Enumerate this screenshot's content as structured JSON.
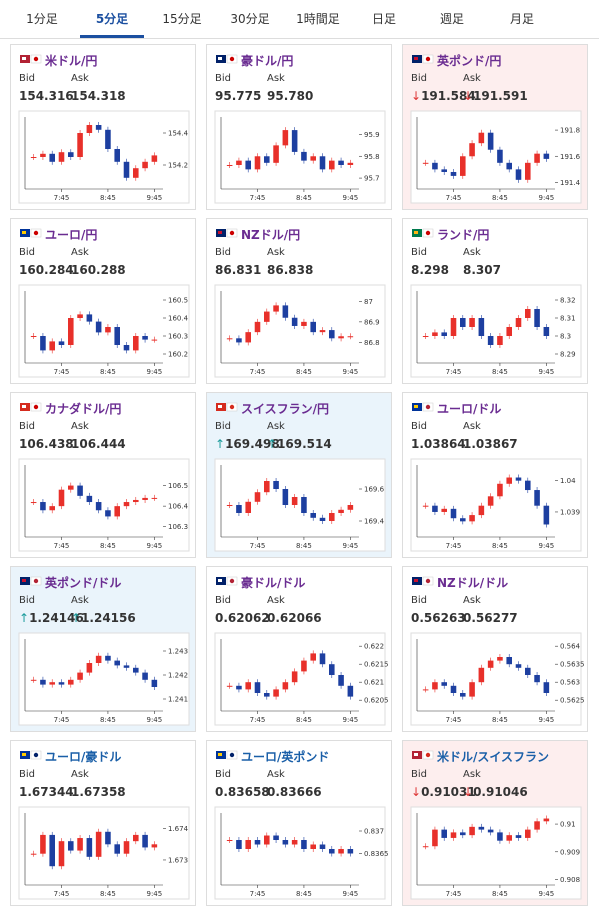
{
  "tabs": [
    "1分足",
    "5分足",
    "15分足",
    "30分足",
    "1時間足",
    "日足",
    "週足",
    "月足"
  ],
  "active_tab": 1,
  "labels": {
    "bid": "Bid",
    "ask": "Ask"
  },
  "cards": [
    {
      "name": "米ドル/円",
      "bid": "154.316",
      "ask": "154.318",
      "chart": {
        "ylim": [
          154.05,
          154.5
        ],
        "yticks": [
          154.4,
          154.2
        ],
        "closes": [
          154.25,
          154.27,
          154.22,
          154.28,
          154.25,
          154.4,
          154.45,
          154.42,
          154.3,
          154.22,
          154.12,
          154.18,
          154.22,
          154.26
        ],
        "xticks": [
          {
            "value": 3,
            "label": "7:45"
          },
          {
            "value": 8,
            "label": "8:45"
          },
          {
            "value": 13,
            "label": "9:45"
          }
        ]
      }
    },
    {
      "name": "豪ドル/円",
      "bid": "95.775",
      "ask": "95.780",
      "chart": {
        "ylim": [
          95.65,
          95.98
        ],
        "yticks": [
          95.9,
          95.8,
          95.7
        ],
        "closes": [
          95.76,
          95.78,
          95.74,
          95.8,
          95.77,
          95.85,
          95.92,
          95.82,
          95.78,
          95.8,
          95.74,
          95.78,
          95.76,
          95.77
        ],
        "xticks": [
          {
            "value": 3,
            "label": "7:45"
          },
          {
            "value": 8,
            "label": "8:45"
          },
          {
            "value": 13,
            "label": "9:45"
          }
        ]
      }
    },
    {
      "name": "英ポンド/円",
      "arrow": "↓",
      "direction": "down",
      "highlight": "#fdeeee",
      "bid": "191.584",
      "ask": "191.591",
      "chart": {
        "ylim": [
          191.35,
          191.9
        ],
        "yticks": [
          191.8,
          191.6,
          191.4
        ],
        "closes": [
          191.55,
          191.5,
          191.48,
          191.45,
          191.6,
          191.7,
          191.78,
          191.65,
          191.55,
          191.5,
          191.42,
          191.55,
          191.62,
          191.58
        ],
        "xticks": [
          {
            "value": 3,
            "label": "7:45"
          },
          {
            "value": 8,
            "label": "8:45"
          },
          {
            "value": 13,
            "label": "9:45"
          }
        ]
      }
    },
    {
      "name": "ユーロ/円",
      "bid": "160.284",
      "ask": "160.288",
      "chart": {
        "ylim": [
          160.15,
          160.55
        ],
        "yticks": [
          160.5,
          160.4,
          160.3,
          160.2
        ],
        "closes": [
          160.3,
          160.22,
          160.27,
          160.25,
          160.4,
          160.42,
          160.38,
          160.32,
          160.35,
          160.25,
          160.22,
          160.3,
          160.28,
          160.28
        ],
        "xticks": [
          {
            "value": 3,
            "label": "7:45"
          },
          {
            "value": 8,
            "label": "8:45"
          },
          {
            "value": 13,
            "label": "9:45"
          }
        ]
      }
    },
    {
      "name": "NZドル/円",
      "bid": "86.831",
      "ask": "86.838",
      "chart": {
        "ylim": [
          86.7,
          87.05
        ],
        "yticks": [
          87,
          86.9,
          86.8
        ],
        "closes": [
          86.82,
          86.8,
          86.85,
          86.9,
          86.95,
          86.98,
          86.92,
          86.88,
          86.9,
          86.85,
          86.86,
          86.82,
          86.83,
          86.83
        ],
        "xticks": [
          {
            "value": 3,
            "label": "7:45"
          },
          {
            "value": 8,
            "label": "8:45"
          },
          {
            "value": 13,
            "label": "9:45"
          }
        ]
      }
    },
    {
      "name": "ランド/円",
      "bid": "8.298",
      "ask": "8.307",
      "chart": {
        "ylim": [
          8.285,
          8.325
        ],
        "yticks": [
          8.32,
          8.31,
          8.3,
          8.29
        ],
        "closes": [
          8.3,
          8.302,
          8.3,
          8.31,
          8.305,
          8.31,
          8.3,
          8.295,
          8.3,
          8.305,
          8.31,
          8.315,
          8.305,
          8.3
        ],
        "xticks": [
          {
            "value": 3,
            "label": "7:45"
          },
          {
            "value": 8,
            "label": "8:45"
          },
          {
            "value": 13,
            "label": "9:45"
          }
        ]
      }
    },
    {
      "name": "カナダドル/円",
      "bid": "106.438",
      "ask": "106.444",
      "chart": {
        "ylim": [
          106.25,
          106.6
        ],
        "yticks": [
          106.5,
          106.4,
          106.3
        ],
        "closes": [
          106.42,
          106.38,
          106.4,
          106.48,
          106.5,
          106.45,
          106.42,
          106.38,
          106.35,
          106.4,
          106.42,
          106.43,
          106.44,
          106.44
        ],
        "xticks": [
          {
            "value": 3,
            "label": "7:45"
          },
          {
            "value": 8,
            "label": "8:45"
          },
          {
            "value": 13,
            "label": "9:45"
          }
        ]
      }
    },
    {
      "name": "スイスフラン/円",
      "arrow": "↑",
      "direction": "up",
      "highlight": "#eaf4fb",
      "bid": "169.498",
      "ask": "169.514",
      "chart": {
        "ylim": [
          169.3,
          169.75
        ],
        "yticks": [
          169.6,
          169.4
        ],
        "closes": [
          169.5,
          169.45,
          169.52,
          169.58,
          169.65,
          169.6,
          169.5,
          169.55,
          169.45,
          169.42,
          169.4,
          169.45,
          169.47,
          169.5
        ],
        "xticks": [
          {
            "value": 3,
            "label": "7:45"
          },
          {
            "value": 8,
            "label": "8:45"
          },
          {
            "value": 13,
            "label": "9:45"
          }
        ]
      }
    },
    {
      "name": "ユーロ/ドル",
      "bid": "1.03864",
      "ask": "1.03867",
      "chart": {
        "ylim": [
          1.0382,
          1.0405
        ],
        "yticks": [
          1.04,
          1.039
        ],
        "closes": [
          1.0392,
          1.039,
          1.0391,
          1.0388,
          1.0387,
          1.0389,
          1.0392,
          1.0395,
          1.0399,
          1.0401,
          1.04,
          1.0397,
          1.0392,
          1.0386
        ],
        "xticks": [
          {
            "value": 3,
            "label": "7:45"
          },
          {
            "value": 8,
            "label": "8:45"
          },
          {
            "value": 13,
            "label": "9:45"
          }
        ]
      }
    },
    {
      "name": "英ポンド/ドル",
      "arrow": "↑",
      "direction": "up",
      "highlight": "#eaf4fb",
      "bid": "1.24146",
      "ask": "1.24156",
      "chart": {
        "ylim": [
          1.2405,
          1.2435
        ],
        "yticks": [
          1.243,
          1.242,
          1.241
        ],
        "closes": [
          1.2418,
          1.2416,
          1.2417,
          1.2416,
          1.2418,
          1.2421,
          1.2425,
          1.2428,
          1.2426,
          1.2424,
          1.2423,
          1.2421,
          1.2418,
          1.2415
        ],
        "xticks": [
          {
            "value": 3,
            "label": "7:45"
          },
          {
            "value": 8,
            "label": "8:45"
          },
          {
            "value": 13,
            "label": "9:45"
          }
        ]
      }
    },
    {
      "name": "豪ドル/ドル",
      "bid": "0.62062",
      "ask": "0.62066",
      "chart": {
        "ylim": [
          0.6202,
          0.6222
        ],
        "yticks": [
          0.622,
          0.6215,
          0.621,
          0.6205
        ],
        "closes": [
          0.6209,
          0.6208,
          0.621,
          0.6207,
          0.6206,
          0.6208,
          0.621,
          0.6213,
          0.6216,
          0.6218,
          0.6215,
          0.6212,
          0.6209,
          0.6206
        ],
        "xticks": [
          {
            "value": 3,
            "label": "7:45"
          },
          {
            "value": 8,
            "label": "8:45"
          },
          {
            "value": 13,
            "label": "9:45"
          }
        ]
      }
    },
    {
      "name": "NZドル/ドル",
      "bid": "0.56263",
      "ask": "0.56277",
      "chart": {
        "ylim": [
          0.5622,
          0.5642
        ],
        "yticks": [
          0.564,
          0.5635,
          0.563,
          0.5625
        ],
        "closes": [
          0.5628,
          0.563,
          0.5629,
          0.5627,
          0.5626,
          0.563,
          0.5634,
          0.5636,
          0.5637,
          0.5635,
          0.5634,
          0.5632,
          0.563,
          0.5627
        ],
        "xticks": [
          {
            "value": 3,
            "label": "7:45"
          },
          {
            "value": 8,
            "label": "8:45"
          },
          {
            "value": 13,
            "label": "9:45"
          }
        ]
      }
    },
    {
      "name": "ユーロ/豪ドル",
      "bid": "1.67344",
      "ask": "1.67358",
      "chart": {
        "ylim": [
          1.6722,
          1.6745
        ],
        "yticks": [
          1.674,
          1.673
        ],
        "closes": [
          1.6732,
          1.6738,
          1.6728,
          1.6736,
          1.6733,
          1.6737,
          1.6731,
          1.6739,
          1.6735,
          1.6732,
          1.6736,
          1.6738,
          1.6734,
          1.6735
        ],
        "xticks": [
          {
            "value": 3,
            "label": "7:45"
          },
          {
            "value": 8,
            "label": "8:45"
          },
          {
            "value": 13,
            "label": "9:45"
          }
        ]
      }
    },
    {
      "name": "ユーロ/英ポンド",
      "bid": "0.83658",
      "ask": "0.83666",
      "chart": {
        "ylim": [
          0.8358,
          0.8374
        ],
        "yticks": [
          0.837,
          0.8365
        ],
        "closes": [
          0.8368,
          0.8366,
          0.8368,
          0.8367,
          0.8369,
          0.8368,
          0.8367,
          0.8368,
          0.8366,
          0.8367,
          0.8366,
          0.8365,
          0.8366,
          0.8365
        ],
        "xticks": [
          {
            "value": 3,
            "label": "7:45"
          },
          {
            "value": 8,
            "label": "8:45"
          },
          {
            "value": 13,
            "label": "9:45"
          }
        ]
      }
    },
    {
      "name": "米ドル/スイスフラン",
      "arrow": "↓",
      "direction": "down",
      "highlight": "#fdeeee",
      "bid": "0.91031",
      "ask": "0.91046",
      "chart": {
        "ylim": [
          0.9078,
          0.9104
        ],
        "yticks": [
          0.91,
          0.909,
          0.908
        ],
        "closes": [
          0.9092,
          0.9098,
          0.9095,
          0.9097,
          0.9096,
          0.9099,
          0.9098,
          0.9097,
          0.9094,
          0.9096,
          0.9095,
          0.9098,
          0.9101,
          0.9102
        ],
        "xticks": [
          {
            "value": 3,
            "label": "7:45"
          },
          {
            "value": 8,
            "label": "8:45"
          },
          {
            "value": 13,
            "label": "9:45"
          }
        ]
      }
    }
  ]
}
